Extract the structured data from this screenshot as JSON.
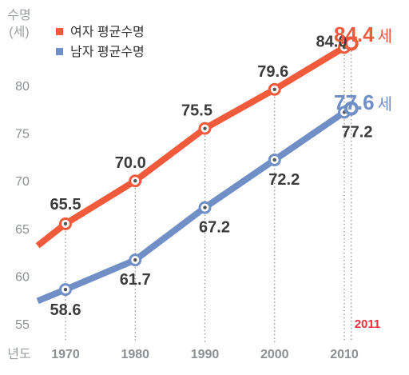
{
  "chart_data": {
    "type": "line",
    "y_unit_label": [
      "수명",
      "(세)"
    ],
    "x_unit_label": "년도",
    "x_ticks": [
      "1970",
      "1980",
      "1990",
      "2000",
      "2010"
    ],
    "y_ticks": [
      "55",
      "60",
      "65",
      "70",
      "75",
      "80"
    ],
    "ylim": [
      54,
      86
    ],
    "xlim": [
      1966,
      2017
    ],
    "grid": false,
    "legend_position": "top-left",
    "series": [
      {
        "name": "여자 평균수명",
        "color": "#f15a3a",
        "x": [
          1966,
          1970,
          1980,
          1990,
          2000,
          2010,
          2011
        ],
        "values": [
          63.2,
          65.5,
          70.0,
          75.5,
          79.6,
          84.0,
          84.4
        ],
        "labels": [
          "65.5",
          "70.0",
          "75.5",
          "79.6",
          "84.0"
        ],
        "final_label": "84.4",
        "final_unit": "세"
      },
      {
        "name": "남자 평균수명",
        "color": "#6f8fc6",
        "x": [
          1966,
          1970,
          1980,
          1990,
          2000,
          2010,
          2011
        ],
        "values": [
          57.4,
          58.6,
          61.7,
          67.2,
          72.2,
          77.2,
          77.6
        ],
        "labels": [
          "58.6",
          "61.7",
          "67.2",
          "72.2",
          "77.2"
        ],
        "final_label": "77.6",
        "final_unit": "세"
      }
    ],
    "highlight_year": "2011",
    "highlight_color": "#e8323c"
  }
}
